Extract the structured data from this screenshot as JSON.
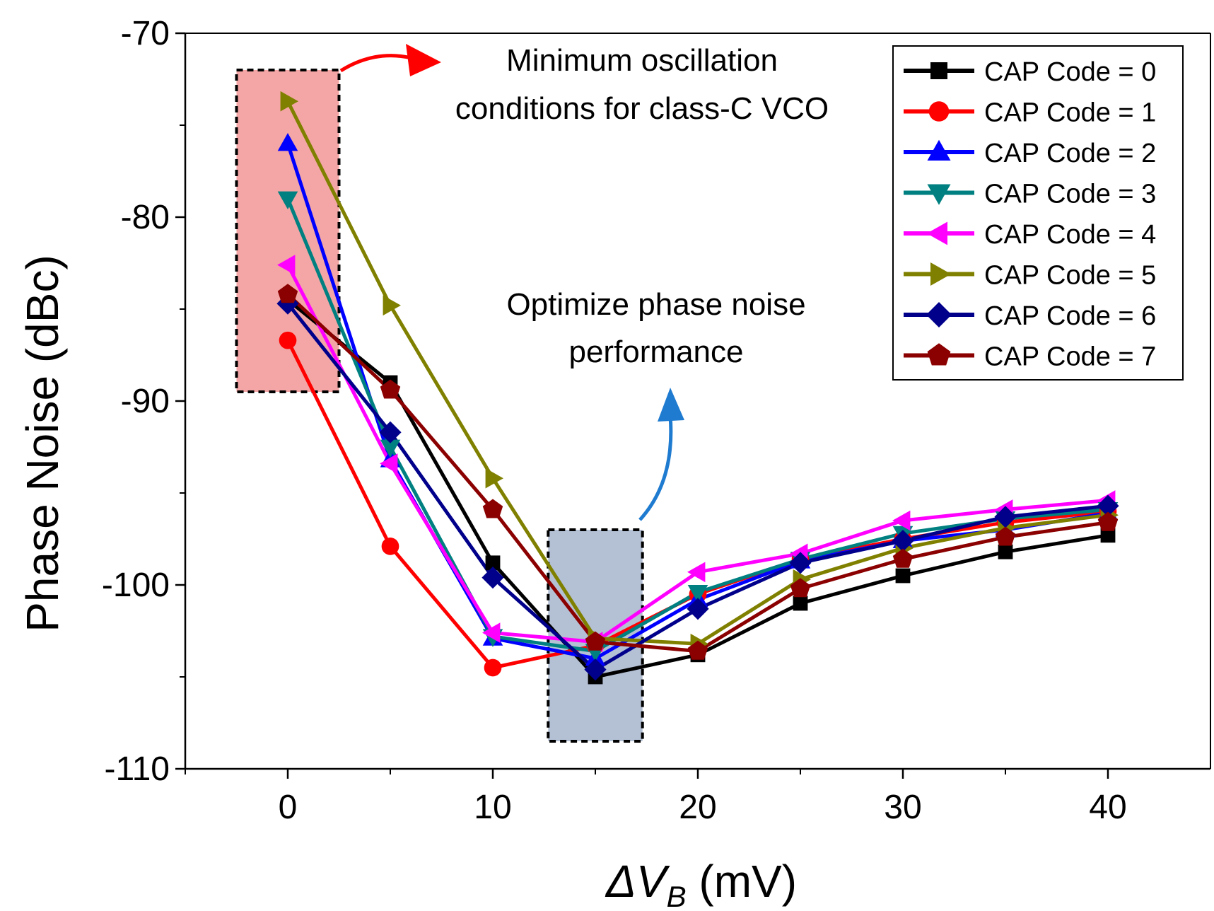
{
  "chart_data": {
    "type": "line",
    "ylabel": "Phase Noise (dBc)",
    "xlabel": {
      "delta": "Δ",
      "v": "V",
      "sub": "B",
      "unit": " (mV)"
    },
    "xlim": [
      -5,
      45
    ],
    "ylim": [
      -110,
      -70
    ],
    "x_ticks": [
      0,
      10,
      20,
      30,
      40
    ],
    "y_ticks": [
      -70,
      -80,
      -90,
      -100,
      -110
    ],
    "x_tick_labels": [
      "0",
      "10",
      "20",
      "30",
      "40"
    ],
    "y_tick_labels": [
      "-70",
      "-80",
      "-90",
      "-100",
      "-110"
    ],
    "legend_position": "top-right",
    "x": [
      0,
      5,
      10,
      15,
      20,
      25,
      30,
      35,
      40
    ],
    "series": [
      {
        "name": "CAP Code = 0",
        "color": "#000000",
        "marker": "square",
        "values": [
          -84.5,
          -89.0,
          -98.8,
          -105.0,
          -103.8,
          -101.0,
          -99.5,
          -98.2,
          -97.3
        ]
      },
      {
        "name": "CAP Code = 1",
        "color": "#ff0000",
        "marker": "circle",
        "values": [
          -86.7,
          -97.9,
          -104.5,
          -103.3,
          -100.5,
          -98.6,
          -97.5,
          -96.6,
          -96.0
        ]
      },
      {
        "name": "CAP Code = 2",
        "color": "#0000ff",
        "marker": "triangle-up",
        "values": [
          -76.0,
          -93.2,
          -102.9,
          -104.0,
          -100.8,
          -98.7,
          -97.6,
          -97.0,
          -96.1
        ]
      },
      {
        "name": "CAP Code = 3",
        "color": "#008080",
        "marker": "triangle-down",
        "values": [
          -79.0,
          -92.5,
          -102.8,
          -103.6,
          -100.4,
          -98.6,
          -97.2,
          -96.4,
          -95.9
        ]
      },
      {
        "name": "CAP Code = 4",
        "color": "#ff00ff",
        "marker": "triangle-left",
        "values": [
          -82.6,
          -93.4,
          -102.6,
          -103.1,
          -99.3,
          -98.3,
          -96.5,
          -95.9,
          -95.4
        ]
      },
      {
        "name": "CAP Code = 5",
        "color": "#808000",
        "marker": "triangle-right",
        "values": [
          -73.7,
          -84.8,
          -94.2,
          -102.9,
          -103.2,
          -99.7,
          -98.0,
          -96.9,
          -96.2
        ]
      },
      {
        "name": "CAP Code = 6",
        "color": "#00008b",
        "marker": "diamond",
        "values": [
          -84.7,
          -91.7,
          -99.6,
          -104.6,
          -101.3,
          -98.8,
          -97.6,
          -96.3,
          -95.7
        ]
      },
      {
        "name": "CAP Code = 7",
        "color": "#8b0000",
        "marker": "pentagon",
        "values": [
          -84.2,
          -89.4,
          -95.9,
          -103.1,
          -103.6,
          -100.2,
          -98.6,
          -97.4,
          -96.6
        ]
      }
    ],
    "annotations": [
      {
        "name": "min-oscillation",
        "lines": [
          "Minimum oscillation",
          "conditions for class-C VCO"
        ],
        "box_x_range": [
          -2.5,
          2.5
        ],
        "box_y_range": [
          -89.5,
          -72.0
        ],
        "box_color": "#f4a6a6",
        "arrow_color": "#ff0000"
      },
      {
        "name": "optimize-pn",
        "lines": [
          "Optimize phase noise",
          "performance"
        ],
        "box_x_range": [
          12.7,
          17.3
        ],
        "box_y_range": [
          -108.5,
          -97.0
        ],
        "box_color": "#b4c0d4",
        "arrow_color": "#1e7bd0"
      }
    ]
  }
}
